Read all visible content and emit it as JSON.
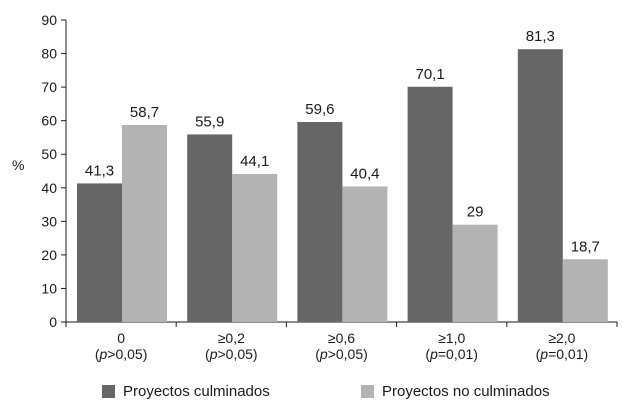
{
  "chart_data": {
    "type": "bar",
    "ylabel": "%",
    "ylim": [
      0,
      90
    ],
    "yticks": [
      "0",
      "10",
      "20",
      "30",
      "40",
      "50",
      "60",
      "70",
      "80",
      "90"
    ],
    "categories": [
      {
        "main": "0",
        "sub_pre": "(",
        "sub_italic": "p",
        "sub_post": ">0,05)"
      },
      {
        "main": "≥0,2",
        "sub_pre": "(",
        "sub_italic": "p",
        "sub_post": ">0,05)"
      },
      {
        "main": "≥0,6",
        "sub_pre": "(",
        "sub_italic": "p",
        "sub_post": ">0,05)"
      },
      {
        "main": "≥1,0",
        "sub_pre": "(",
        "sub_italic": "p",
        "sub_post": "=0,01)"
      },
      {
        "main": "≥2,0",
        "sub_pre": "(",
        "sub_italic": "p",
        "sub_post": "=0,01)"
      }
    ],
    "series": [
      {
        "name": "Proyectos culminados",
        "color": "#666666",
        "values": [
          41.3,
          55.9,
          59.6,
          70.1,
          81.3
        ],
        "labels": [
          "41,3",
          "55,9",
          "59,6",
          "70,1",
          "81,3"
        ]
      },
      {
        "name": "Proyectos no culminados",
        "color": "#b3b3b3",
        "values": [
          58.7,
          44.1,
          40.4,
          29,
          18.7
        ],
        "labels": [
          "58,7",
          "44,1",
          "40,4",
          "29",
          "18,7"
        ]
      }
    ],
    "grid": false,
    "legend_position": "bottom"
  }
}
